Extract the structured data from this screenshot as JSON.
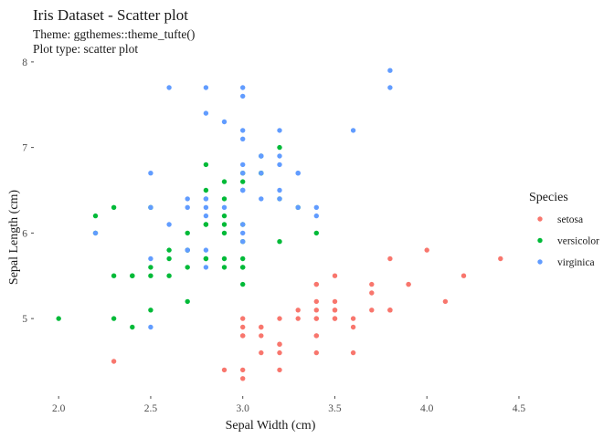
{
  "chart_data": {
    "type": "scatter",
    "title": "Iris Dataset - Scatter plot",
    "subtitle_lines": [
      "Theme: ggthemes::theme_tufte()",
      "Plot type: scatter plot"
    ],
    "xlabel": "Sepal Width (cm)",
    "ylabel": "Sepal Length (cm)",
    "xlim": [
      1.88,
      4.52
    ],
    "ylim": [
      4.18,
      8.02
    ],
    "x_ticks": [
      "2.0",
      "2.5",
      "3.0",
      "3.5",
      "4.0",
      "4.5"
    ],
    "x_tick_values": [
      2.0,
      2.5,
      3.0,
      3.5,
      4.0,
      4.5
    ],
    "y_ticks": [
      "5",
      "6",
      "7",
      "8"
    ],
    "y_tick_values": [
      5,
      6,
      7,
      8
    ],
    "grid": false,
    "legend": {
      "title": "Species",
      "position": "right"
    },
    "series": [
      {
        "name": "setosa",
        "color": "#F8766D",
        "points": [
          [
            3.5,
            5.1
          ],
          [
            3.0,
            4.9
          ],
          [
            3.2,
            4.7
          ],
          [
            3.1,
            4.6
          ],
          [
            3.6,
            5.0
          ],
          [
            3.9,
            5.4
          ],
          [
            3.4,
            4.6
          ],
          [
            3.4,
            5.0
          ],
          [
            2.9,
            4.4
          ],
          [
            3.1,
            4.9
          ],
          [
            3.7,
            5.4
          ],
          [
            3.4,
            4.8
          ],
          [
            3.0,
            4.8
          ],
          [
            3.0,
            4.3
          ],
          [
            4.0,
            5.8
          ],
          [
            4.4,
            5.7
          ],
          [
            3.9,
            5.4
          ],
          [
            3.5,
            5.1
          ],
          [
            3.8,
            5.7
          ],
          [
            3.8,
            5.1
          ],
          [
            3.4,
            5.4
          ],
          [
            3.7,
            5.1
          ],
          [
            3.6,
            4.6
          ],
          [
            3.3,
            5.1
          ],
          [
            3.4,
            4.8
          ],
          [
            3.0,
            5.0
          ],
          [
            3.4,
            5.0
          ],
          [
            3.5,
            5.2
          ],
          [
            3.4,
            5.2
          ],
          [
            3.2,
            4.7
          ],
          [
            3.1,
            4.8
          ],
          [
            3.4,
            5.4
          ],
          [
            4.1,
            5.2
          ],
          [
            4.2,
            5.5
          ],
          [
            3.1,
            4.9
          ],
          [
            3.2,
            5.0
          ],
          [
            3.5,
            5.5
          ],
          [
            3.6,
            4.9
          ],
          [
            3.0,
            4.4
          ],
          [
            3.4,
            5.1
          ],
          [
            3.5,
            5.0
          ],
          [
            2.3,
            4.5
          ],
          [
            3.2,
            4.4
          ],
          [
            3.5,
            5.0
          ],
          [
            3.8,
            5.1
          ],
          [
            3.0,
            4.8
          ],
          [
            3.8,
            5.1
          ],
          [
            3.2,
            4.6
          ],
          [
            3.7,
            5.3
          ],
          [
            3.3,
            5.0
          ]
        ]
      },
      {
        "name": "versicolor",
        "color": "#00BA38",
        "points": [
          [
            3.2,
            7.0
          ],
          [
            3.2,
            6.4
          ],
          [
            3.1,
            6.9
          ],
          [
            2.3,
            5.5
          ],
          [
            2.8,
            6.5
          ],
          [
            2.8,
            5.7
          ],
          [
            3.3,
            6.3
          ],
          [
            2.4,
            4.9
          ],
          [
            2.9,
            6.6
          ],
          [
            2.7,
            5.2
          ],
          [
            2.0,
            5.0
          ],
          [
            3.0,
            5.9
          ],
          [
            2.2,
            6.0
          ],
          [
            2.9,
            6.1
          ],
          [
            2.9,
            5.6
          ],
          [
            3.1,
            6.7
          ],
          [
            3.0,
            5.6
          ],
          [
            2.7,
            5.8
          ],
          [
            2.2,
            6.2
          ],
          [
            2.5,
            5.6
          ],
          [
            3.2,
            5.9
          ],
          [
            2.8,
            6.1
          ],
          [
            2.5,
            6.3
          ],
          [
            2.8,
            6.1
          ],
          [
            2.9,
            6.4
          ],
          [
            3.0,
            6.6
          ],
          [
            2.8,
            6.8
          ],
          [
            3.0,
            6.7
          ],
          [
            2.9,
            6.0
          ],
          [
            2.6,
            5.7
          ],
          [
            2.4,
            5.5
          ],
          [
            2.4,
            5.5
          ],
          [
            2.7,
            5.8
          ],
          [
            2.7,
            6.0
          ],
          [
            3.0,
            5.4
          ],
          [
            3.4,
            6.0
          ],
          [
            3.1,
            6.7
          ],
          [
            2.3,
            6.3
          ],
          [
            3.0,
            5.6
          ],
          [
            2.5,
            5.5
          ],
          [
            2.6,
            5.5
          ],
          [
            3.0,
            6.1
          ],
          [
            2.6,
            5.8
          ],
          [
            2.3,
            5.0
          ],
          [
            2.7,
            5.6
          ],
          [
            3.0,
            5.7
          ],
          [
            2.9,
            5.7
          ],
          [
            2.9,
            6.2
          ],
          [
            2.5,
            5.1
          ],
          [
            2.8,
            5.7
          ]
        ]
      },
      {
        "name": "virginica",
        "color": "#619CFF",
        "points": [
          [
            3.3,
            6.3
          ],
          [
            2.7,
            5.8
          ],
          [
            3.0,
            7.1
          ],
          [
            2.9,
            6.3
          ],
          [
            3.0,
            6.5
          ],
          [
            3.0,
            7.6
          ],
          [
            2.5,
            4.9
          ],
          [
            2.9,
            7.3
          ],
          [
            2.5,
            6.7
          ],
          [
            3.6,
            7.2
          ],
          [
            3.2,
            6.5
          ],
          [
            2.7,
            6.4
          ],
          [
            3.0,
            6.8
          ],
          [
            2.5,
            5.7
          ],
          [
            2.8,
            5.8
          ],
          [
            3.2,
            6.4
          ],
          [
            3.0,
            6.5
          ],
          [
            3.8,
            7.7
          ],
          [
            2.6,
            7.7
          ],
          [
            2.2,
            6.0
          ],
          [
            3.2,
            6.9
          ],
          [
            2.8,
            5.6
          ],
          [
            2.8,
            7.7
          ],
          [
            2.7,
            6.3
          ],
          [
            3.3,
            6.7
          ],
          [
            3.2,
            7.2
          ],
          [
            2.8,
            6.2
          ],
          [
            3.0,
            6.1
          ],
          [
            2.8,
            6.4
          ],
          [
            3.0,
            7.2
          ],
          [
            2.8,
            7.4
          ],
          [
            3.8,
            7.9
          ],
          [
            2.8,
            6.4
          ],
          [
            2.8,
            6.3
          ],
          [
            2.6,
            6.1
          ],
          [
            3.0,
            7.7
          ],
          [
            3.4,
            6.3
          ],
          [
            3.1,
            6.4
          ],
          [
            3.0,
            6.0
          ],
          [
            3.1,
            6.9
          ],
          [
            3.1,
            6.7
          ],
          [
            3.1,
            6.9
          ],
          [
            2.7,
            5.8
          ],
          [
            3.2,
            6.8
          ],
          [
            3.3,
            6.7
          ],
          [
            3.0,
            6.7
          ],
          [
            2.5,
            6.3
          ],
          [
            3.0,
            6.5
          ],
          [
            3.4,
            6.2
          ],
          [
            3.0,
            5.9
          ]
        ]
      }
    ]
  }
}
